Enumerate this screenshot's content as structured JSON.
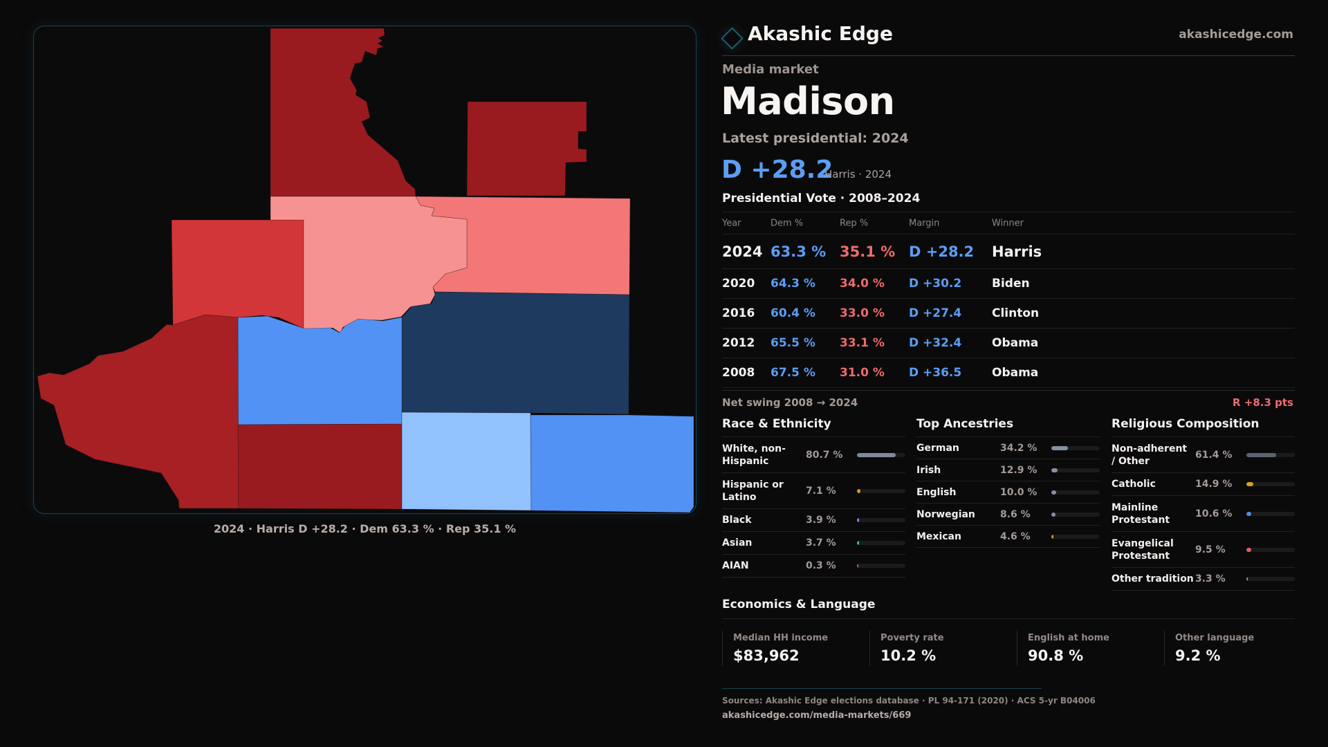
{
  "brand": {
    "name": "Akashic Edge",
    "site": "akashicedge.com",
    "logo_icon": "diamond-outline-icon"
  },
  "header": {
    "kicker": "Media market",
    "title": "Madison",
    "latest_label": "Latest presidential: 2024",
    "latest_margin": "D +28.2",
    "latest_sub": "Harris · 2024"
  },
  "colors": {
    "dem": "#5b9ef3",
    "rep": "#ef6b6b",
    "background": "#0b0a0b",
    "accent": "#17444d"
  },
  "map": {
    "caption": "2024 · Harris D +28.2 · Dem 63.3 % · Rep 35.1 %",
    "county_fills": {
      "north": "#9a1b1f",
      "northeast": "#9a1b1f",
      "west": "#d23638",
      "center": "#f79292",
      "east": "#f47778",
      "southwest": "#a62024",
      "center_south": "#5292f5",
      "east_navy": "#1f3a5f",
      "south": "#9a1b1f",
      "south_light": "#92c2fd",
      "southeast": "#5292f5"
    }
  },
  "vote_table": {
    "title": "Presidential Vote · 2008–2024",
    "columns": [
      "Year",
      "Dem %",
      "Rep %",
      "Margin",
      "Winner"
    ],
    "rows": [
      {
        "year": "2024",
        "dem": "63.3 %",
        "rep": "35.1 %",
        "margin": "D +28.2",
        "winner": "Harris"
      },
      {
        "year": "2020",
        "dem": "64.3 %",
        "rep": "34.0 %",
        "margin": "D +30.2",
        "winner": "Biden"
      },
      {
        "year": "2016",
        "dem": "60.4 %",
        "rep": "33.0 %",
        "margin": "D +27.4",
        "winner": "Clinton"
      },
      {
        "year": "2012",
        "dem": "65.5 %",
        "rep": "33.1 %",
        "margin": "D +32.4",
        "winner": "Obama"
      },
      {
        "year": "2008",
        "dem": "67.5 %",
        "rep": "31.0 %",
        "margin": "D +36.5",
        "winner": "Obama"
      }
    ],
    "net_swing_label": "Net swing 2008 → 2024",
    "net_swing_value": "R +8.3 pts"
  },
  "race": {
    "title": "Race & Ethnicity",
    "items": [
      {
        "label": "White, non-Hispanic",
        "value": "80.7 %",
        "pct": 80.7,
        "color": "#7f8b9c"
      },
      {
        "label": "Hispanic or Latino",
        "value": "7.1 %",
        "pct": 7.1,
        "color": "#e0941a"
      },
      {
        "label": "Black",
        "value": "3.9 %",
        "pct": 3.9,
        "color": "#9a7de3"
      },
      {
        "label": "Asian",
        "value": "3.7 %",
        "pct": 3.7,
        "color": "#2fc48c"
      },
      {
        "label": "AIAN",
        "value": "0.3 %",
        "pct": 0.3,
        "color": "#c8642a"
      }
    ]
  },
  "ancestry": {
    "title": "Top Ancestries",
    "items": [
      {
        "label": "German",
        "value": "34.2 %",
        "pct": 34.2,
        "color": "#8591a5"
      },
      {
        "label": "Irish",
        "value": "12.9 %",
        "pct": 12.9,
        "color": "#8591a5"
      },
      {
        "label": "English",
        "value": "10.0 %",
        "pct": 10.0,
        "color": "#8591a5"
      },
      {
        "label": "Norwegian",
        "value": "8.6 %",
        "pct": 8.6,
        "color": "#8591a5"
      },
      {
        "label": "Mexican",
        "value": "4.6 %",
        "pct": 4.6,
        "color": "#e0901a"
      }
    ]
  },
  "religion": {
    "title": "Religious Composition",
    "items": [
      {
        "label": "Non-adherent / Other",
        "value": "61.4 %",
        "pct": 61.4,
        "color": "#5e6371"
      },
      {
        "label": "Catholic",
        "value": "14.9 %",
        "pct": 14.9,
        "color": "#d6a21f"
      },
      {
        "label": "Mainline Protestant",
        "value": "10.6 %",
        "pct": 10.6,
        "color": "#4a8fe2"
      },
      {
        "label": "Evangelical Protestant",
        "value": "9.5 %",
        "pct": 9.5,
        "color": "#e05f63"
      },
      {
        "label": "Other tradition",
        "value": "3.3 %",
        "pct": 3.3,
        "color": "#8a8f99"
      }
    ]
  },
  "economics": {
    "title": "Economics & Language",
    "stats": [
      {
        "label": "Median HH income",
        "value": "$83,962"
      },
      {
        "label": "Poverty rate",
        "value": "10.2 %"
      },
      {
        "label": "English at home",
        "value": "90.8 %"
      },
      {
        "label": "Other language",
        "value": "9.2 %"
      }
    ]
  },
  "footer": {
    "sources": "Sources: Akashic Edge elections database · PL 94-171 (2020) · ACS 5-yr B04006",
    "url": "akashicedge.com/media-markets/669"
  }
}
